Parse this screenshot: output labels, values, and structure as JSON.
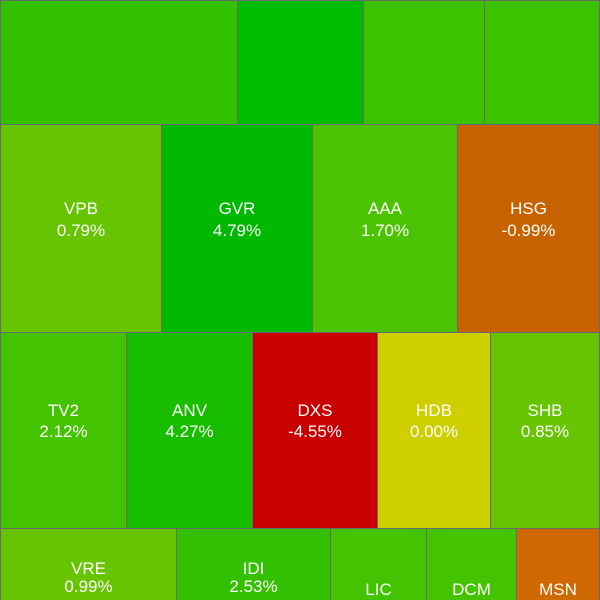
{
  "tiles": [
    {
      "ticker": "VPB",
      "change": "0.79%"
    },
    {
      "ticker": "GVR",
      "change": "4.79%"
    },
    {
      "ticker": "AAA",
      "change": "1.70%"
    },
    {
      "ticker": "HSG",
      "change": "-0.99%"
    },
    {
      "ticker": "TV2",
      "change": "2.12%"
    },
    {
      "ticker": "ANV",
      "change": "4.27%"
    },
    {
      "ticker": "DXS",
      "change": "-4.55%"
    },
    {
      "ticker": "HDB",
      "change": "0.00%"
    },
    {
      "ticker": "SHB",
      "change": "0.85%"
    },
    {
      "ticker": "VRE",
      "change": "0.99%"
    },
    {
      "ticker": "IDI",
      "change": "2.53%"
    },
    {
      "ticker": "LIC"
    },
    {
      "ticker": "DCM"
    },
    {
      "ticker": "MSN"
    }
  ]
}
